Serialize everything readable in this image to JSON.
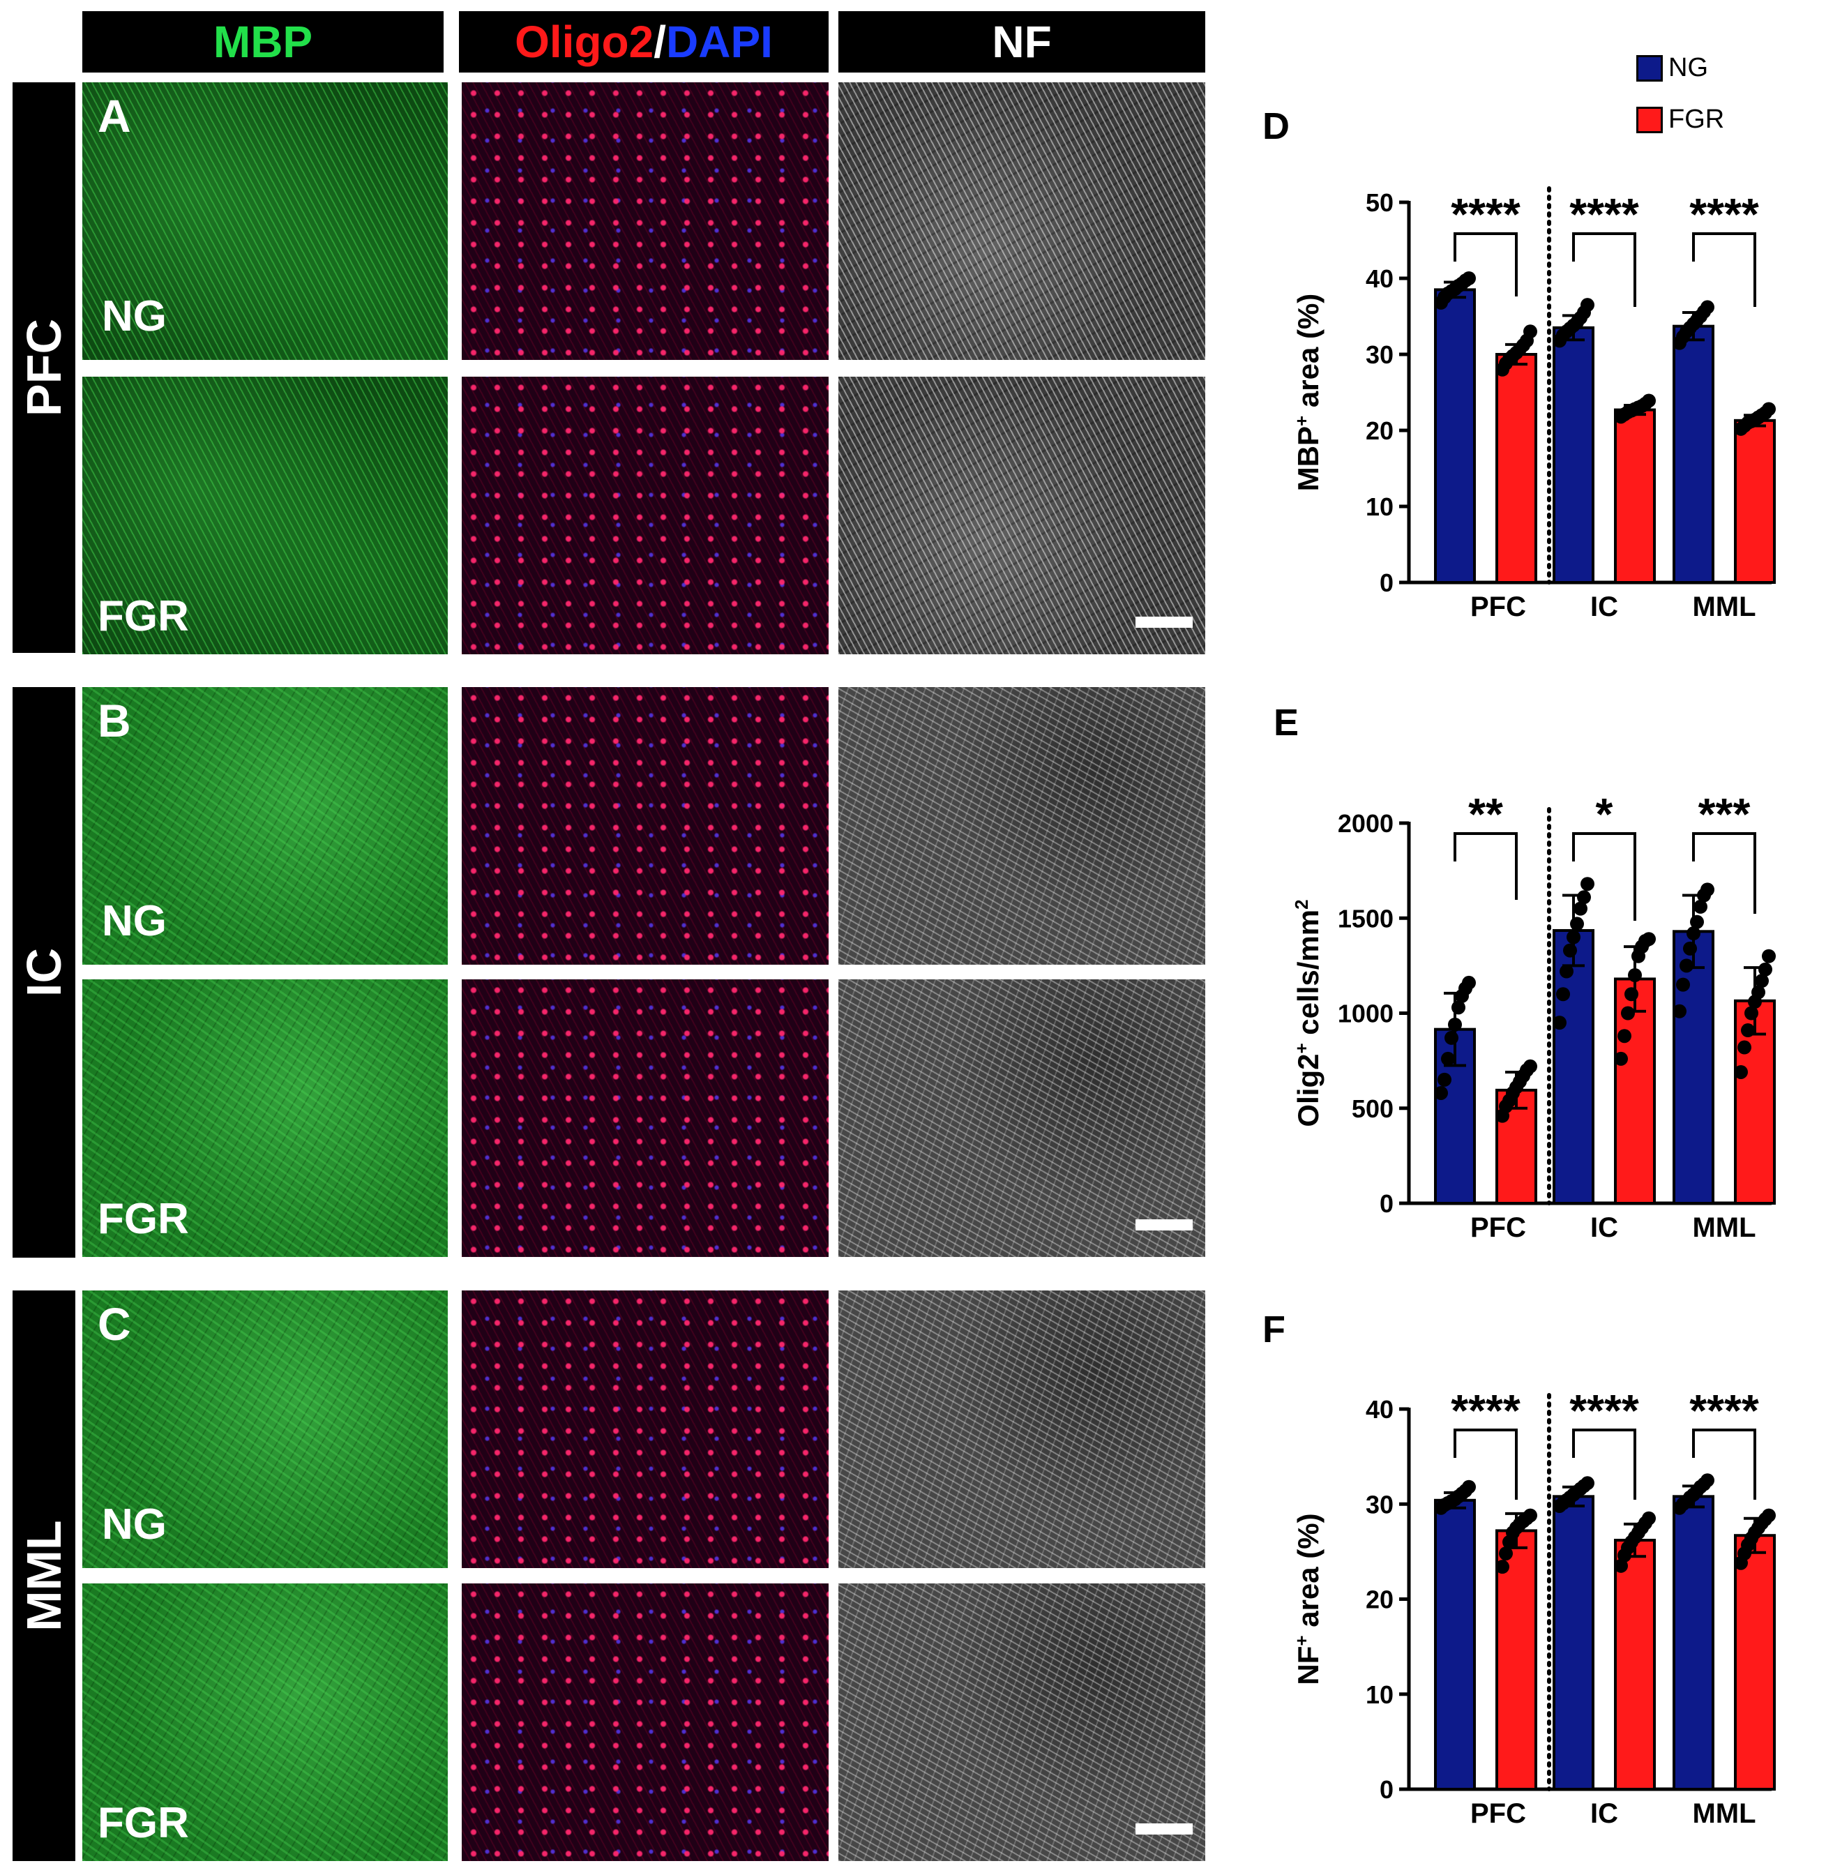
{
  "headers": {
    "mbp": "MBP",
    "olig": "Oligo2",
    "slash": "/",
    "dapi": "DAPI",
    "nf": "NF"
  },
  "header_colors": {
    "mbp": "#22e04a",
    "olig": "#ff1a1a",
    "dapi": "#1a3cff",
    "nf": "#ffffff"
  },
  "regions": [
    "PFC",
    "IC",
    "MML"
  ],
  "panel_letters": [
    "A",
    "B",
    "C"
  ],
  "group_labels": [
    "NG",
    "FGR"
  ],
  "chart_letters": [
    "D",
    "E",
    "F"
  ],
  "legend": [
    {
      "name": "NG",
      "color": "#0d1a8a"
    },
    {
      "name": "FGR",
      "color": "#ff1a1a"
    }
  ],
  "chart_data": [
    {
      "type": "bar",
      "panel": "D",
      "ylabel_main": "MBP",
      "ylabel_sup": "+",
      "ylabel_rest": " area (%)",
      "categories": [
        "PFC",
        "IC",
        "MML"
      ],
      "ylim": [
        0,
        50
      ],
      "yticks": [
        0,
        10,
        20,
        30,
        40,
        50
      ],
      "series": [
        {
          "name": "NG",
          "values": [
            38.5,
            33.5,
            33.7
          ],
          "errors": [
            1.0,
            1.6,
            1.8
          ],
          "points": [
            [
              36.8,
              37.5,
              38.0,
              38.3,
              38.6,
              39.0,
              39.3,
              39.7,
              40.0
            ],
            [
              31.8,
              32.5,
              33.0,
              33.4,
              33.8,
              34.2,
              34.8,
              35.5,
              36.5
            ],
            [
              31.5,
              32.3,
              33.0,
              33.5,
              34.0,
              34.5,
              35.0,
              35.6,
              36.2
            ]
          ]
        },
        {
          "name": "FGR",
          "values": [
            30.0,
            22.7,
            21.3
          ],
          "errors": [
            1.3,
            0.6,
            0.7
          ],
          "points": [
            [
              28.0,
              28.8,
              29.4,
              29.8,
              30.2,
              30.7,
              31.2,
              31.8,
              33.0
            ],
            [
              21.8,
              22.1,
              22.4,
              22.6,
              22.8,
              23.0,
              23.2,
              23.5,
              23.9
            ],
            [
              20.2,
              20.6,
              21.0,
              21.2,
              21.4,
              21.7,
              22.0,
              22.3,
              22.8
            ]
          ]
        }
      ],
      "significance": [
        "****",
        "****",
        "****"
      ]
    },
    {
      "type": "bar",
      "panel": "E",
      "ylabel_main": "Olig2",
      "ylabel_sup": "+",
      "ylabel_rest": " cells/mm",
      "ylabel_sup2": "2",
      "categories": [
        "PFC",
        "IC",
        "MML"
      ],
      "ylim": [
        0,
        2000
      ],
      "yticks": [
        0,
        500,
        1000,
        1500,
        2000
      ],
      "series": [
        {
          "name": "NG",
          "values": [
            915,
            1435,
            1430
          ],
          "errors": [
            190,
            185,
            190
          ],
          "points": [
            [
              580,
              650,
              760,
              870,
              940,
              1030,
              1090,
              1130,
              1160
            ],
            [
              950,
              1100,
              1220,
              1330,
              1400,
              1470,
              1550,
              1610,
              1680
            ],
            [
              1010,
              1150,
              1250,
              1340,
              1420,
              1480,
              1560,
              1620,
              1650
            ]
          ]
        },
        {
          "name": "FGR",
          "values": [
            595,
            1180,
            1065
          ],
          "errors": [
            95,
            170,
            175
          ],
          "points": [
            [
              460,
              510,
              540,
              580,
              610,
              640,
              670,
              700,
              720
            ],
            [
              760,
              880,
              1000,
              1100,
              1200,
              1300,
              1350,
              1380,
              1390
            ],
            [
              690,
              820,
              910,
              1000,
              1060,
              1110,
              1170,
              1230,
              1300
            ]
          ]
        }
      ],
      "significance": [
        "**",
        "*",
        "***"
      ]
    },
    {
      "type": "bar",
      "panel": "F",
      "ylabel_main": "NF",
      "ylabel_sup": "+",
      "ylabel_rest": " area (%)",
      "categories": [
        "PFC",
        "IC",
        "MML"
      ],
      "ylim": [
        0,
        40
      ],
      "yticks": [
        0,
        10,
        20,
        30,
        40
      ],
      "series": [
        {
          "name": "NG",
          "values": [
            30.4,
            30.8,
            30.8
          ],
          "errors": [
            0.8,
            1.0,
            1.1
          ],
          "points": [
            [
              29.6,
              29.9,
              30.1,
              30.3,
              30.5,
              30.8,
              31.1,
              31.4,
              31.8
            ],
            [
              29.8,
              30.1,
              30.4,
              30.7,
              31.0,
              31.3,
              31.6,
              31.9,
              32.2
            ],
            [
              29.6,
              30.0,
              30.3,
              30.7,
              31.0,
              31.4,
              31.8,
              32.1,
              32.5
            ]
          ]
        },
        {
          "name": "FGR",
          "values": [
            27.2,
            26.2,
            26.7
          ],
          "errors": [
            1.8,
            1.7,
            1.8
          ],
          "points": [
            [
              23.4,
              24.8,
              26.0,
              27.0,
              27.5,
              27.9,
              28.2,
              28.5,
              28.8
            ],
            [
              23.5,
              24.6,
              25.4,
              26.0,
              26.5,
              27.0,
              27.5,
              28.0,
              28.5
            ],
            [
              23.8,
              24.8,
              25.7,
              26.4,
              27.0,
              27.5,
              28.0,
              28.4,
              28.8
            ]
          ]
        }
      ],
      "significance": [
        "****",
        "****",
        "****"
      ]
    }
  ]
}
